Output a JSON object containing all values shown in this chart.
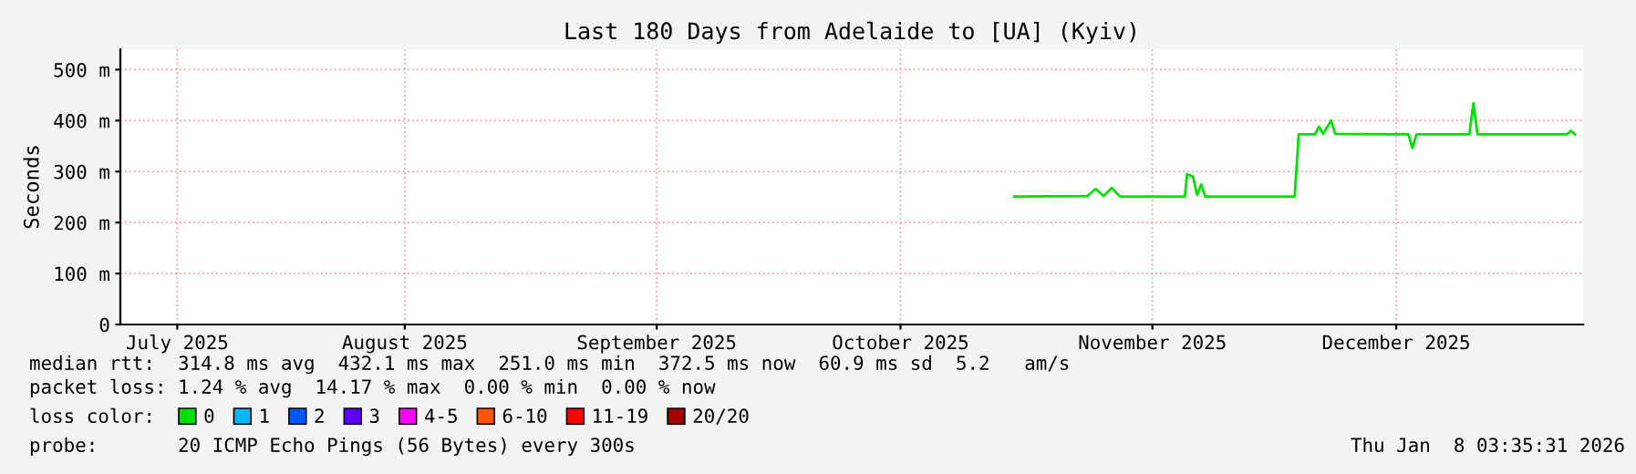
{
  "chart_data": {
    "type": "line",
    "title": "Last 180 Days from Adelaide to [UA] (Kyiv)",
    "ylabel": "Seconds",
    "x": [
      "2025-10-30",
      "2025-11-08",
      "2025-11-09",
      "2025-11-10",
      "2025-11-11",
      "2025-11-12",
      "2025-11-20",
      "2025-11-20T06:00",
      "2025-11-21",
      "2025-11-21T12:00",
      "2025-11-22",
      "2025-11-22T12:00",
      "2025-12-03T12:00",
      "2025-12-04",
      "2025-12-06",
      "2025-12-06T12:00",
      "2025-12-07",
      "2025-12-08",
      "2025-12-08T12:00",
      "2025-12-17T12:00",
      "2025-12-18",
      "2025-12-18T12:00",
      "2025-12-25",
      "2025-12-25T12:00",
      "2025-12-26",
      "2026-01-06",
      "2026-01-06T12:00",
      "2026-01-07"
    ],
    "series": [
      {
        "name": "0",
        "color": "#00e000",
        "values": [
          251,
          252,
          266,
          252,
          268,
          251,
          251,
          295,
          290,
          254,
          275,
          251,
          251,
          373,
          373,
          388,
          374,
          400,
          374,
          373,
          346,
          373,
          373,
          434,
          373,
          373,
          380,
          373
        ]
      },
      {
        "name": "1",
        "color": "#00b8ff",
        "values": [
          null,
          null,
          null,
          null,
          null,
          null,
          null,
          null,
          null,
          null,
          null,
          null,
          null,
          null,
          null,
          null,
          null,
          null,
          null,
          null,
          null,
          null,
          null,
          null,
          null,
          null,
          null,
          null
        ]
      },
      {
        "name": "2",
        "color": "#0059ff",
        "values": [
          null,
          null,
          null,
          null,
          null,
          null,
          null,
          null,
          null,
          null,
          null,
          null,
          null,
          null,
          null,
          null,
          null,
          null,
          null,
          null,
          null,
          null,
          null,
          null,
          null,
          null,
          null,
          null
        ]
      },
      {
        "name": "3",
        "color": "#5e00ff",
        "values": [
          null,
          null,
          null,
          null,
          null,
          null,
          null,
          null,
          null,
          null,
          null,
          null,
          null,
          null,
          null,
          null,
          null,
          null,
          null,
          null,
          null,
          null,
          null,
          null,
          null,
          null,
          null,
          null
        ]
      },
      {
        "name": "4-5",
        "color": "#ff00ff",
        "values": [
          null,
          null,
          null,
          null,
          null,
          null,
          null,
          null,
          null,
          null,
          null,
          null,
          null,
          null,
          null,
          null,
          null,
          null,
          null,
          null,
          null,
          null,
          null,
          null,
          null,
          null,
          null,
          null
        ]
      },
      {
        "name": "6-10",
        "color": "#ff5500",
        "values": [
          null,
          null,
          null,
          null,
          null,
          null,
          null,
          null,
          null,
          null,
          null,
          null,
          null,
          null,
          null,
          null,
          null,
          null,
          null,
          null,
          null,
          null,
          null,
          null,
          null,
          null,
          null,
          null
        ]
      },
      {
        "name": "11-19",
        "color": "#ff0000",
        "values": [
          null,
          null,
          null,
          null,
          null,
          null,
          null,
          null,
          null,
          null,
          null,
          null,
          null,
          null,
          null,
          null,
          null,
          null,
          null,
          null,
          null,
          null,
          null,
          null,
          null,
          null,
          null,
          null
        ]
      },
      {
        "name": "20/20",
        "color": "#a10000",
        "values": [
          null,
          null,
          null,
          null,
          null,
          null,
          null,
          null,
          null,
          null,
          null,
          null,
          null,
          null,
          null,
          null,
          null,
          null,
          null,
          null,
          null,
          null,
          null,
          null,
          null,
          null,
          null,
          null
        ]
      }
    ],
    "legend_title": "loss color:",
    "legend": "bottom",
    "xlim": [
      "2025-07-12",
      "2026-01-08"
    ],
    "xticks": [
      {
        "value": "2025-07-19",
        "label": "July 2025"
      },
      {
        "value": "2025-08-16",
        "label": "August 2025"
      },
      {
        "value": "2025-09-16",
        "label": "September 2025"
      },
      {
        "value": "2025-10-16",
        "label": "October 2025"
      },
      {
        "value": "2025-11-16",
        "label": "November 2025"
      },
      {
        "value": "2025-12-16",
        "label": "December 2025"
      }
    ],
    "ylim": [
      0,
      540
    ],
    "yticks": [
      0,
      {
        "value": 100,
        "label": "100 m"
      },
      {
        "value": 200,
        "label": "200 m"
      },
      {
        "value": 300,
        "label": "300 m"
      },
      {
        "value": 400,
        "label": "400 m"
      },
      {
        "value": 500,
        "label": "500 m"
      }
    ],
    "grid": true,
    "line_style": "solid",
    "annotations": [
      "median rtt:  314.8 ms avg  432.1 ms max  251.0 ms min  372.5 ms now  60.9 ms sd  5.2   am/s",
      "packet loss: 1.24 % avg  14.17 % max  0.00 % min  0.00 % now",
      "probe:       20 ICMP Echo Pings (56 Bytes) every 300s",
      "Thu Jan  8 03:35:31 2026"
    ]
  }
}
